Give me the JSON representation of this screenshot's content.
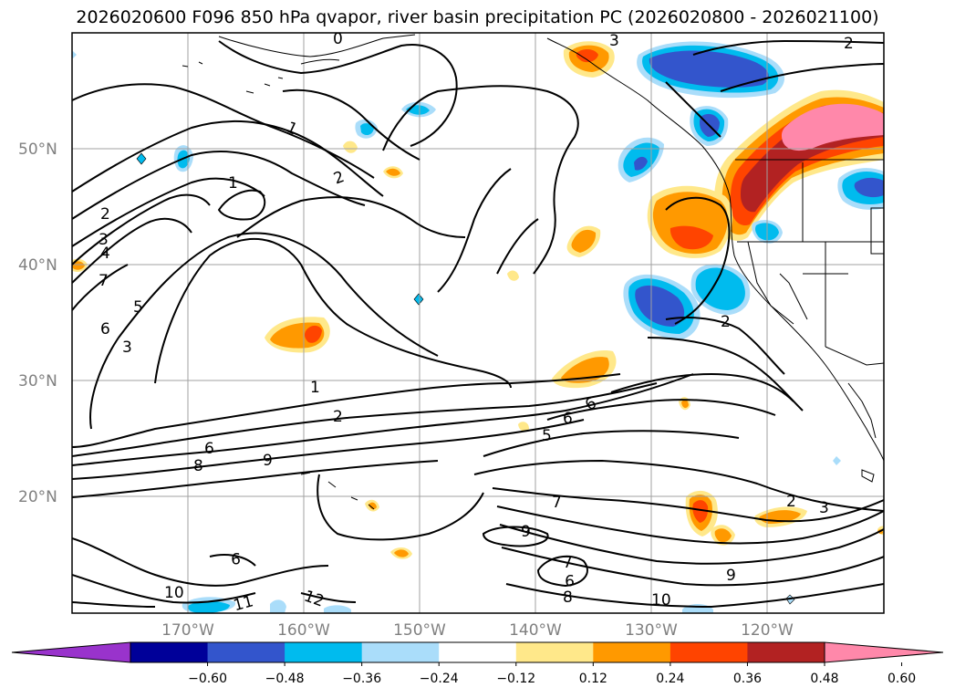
{
  "title": "2026020600 F096 850 hPa qvapor, river basin precipitation PC (2026020800 - 2026021100)",
  "axes": {
    "lat_labels": [
      "50°N",
      "40°N",
      "30°N",
      "20°N"
    ],
    "lon_labels": [
      "170°W",
      "160°W",
      "150°W",
      "140°W",
      "130°W",
      "120°W"
    ]
  },
  "colorbar": {
    "ticks": [
      "−0.60",
      "−0.48",
      "−0.36",
      "−0.24",
      "−0.12",
      "0.12",
      "0.24",
      "0.36",
      "0.48",
      "0.60"
    ],
    "colors": [
      "#9933cc",
      "#000099",
      "#3355cc",
      "#00bbee",
      "#aaddfa",
      "#ffffff",
      "#ffe88a",
      "#ff9900",
      "#ff4400",
      "#b22222",
      "#ff88aa"
    ]
  },
  "contour_labels": [
    "0",
    "1",
    "2",
    "3",
    "4",
    "5",
    "6",
    "7",
    "8",
    "9",
    "10",
    "11",
    "12"
  ]
}
